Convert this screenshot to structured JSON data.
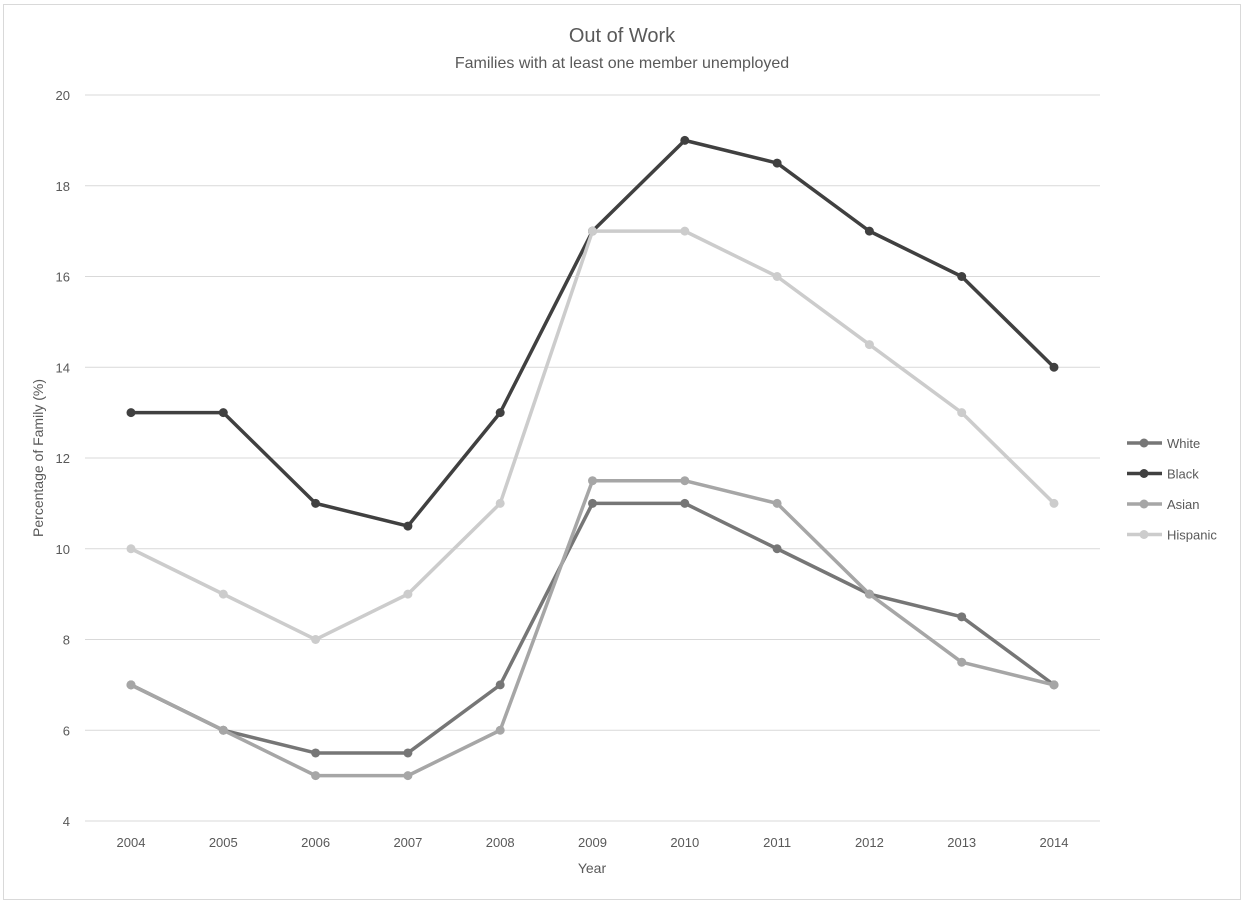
{
  "chart_data": {
    "type": "line",
    "title": "Out of Work",
    "subtitle": "Families with at least one member unemployed",
    "xlabel": "Year",
    "ylabel": "Percentage of Family (%)",
    "categories": [
      "2004",
      "2005",
      "2006",
      "2007",
      "2008",
      "2009",
      "2010",
      "2011",
      "2012",
      "2013",
      "2014"
    ],
    "yticks": [
      "4",
      "6",
      "8",
      "10",
      "12",
      "14",
      "16",
      "18",
      "20"
    ],
    "ylim": [
      4,
      20
    ],
    "grid": true,
    "legend_position": "right",
    "series": [
      {
        "name": "White",
        "color": "#767676",
        "values": [
          7,
          6,
          5.5,
          5.5,
          7,
          11,
          11,
          10,
          9,
          8.5,
          7
        ]
      },
      {
        "name": "Black",
        "color": "#404040",
        "values": [
          13,
          13,
          11,
          10.5,
          13,
          17,
          19,
          18.5,
          17,
          16,
          14
        ]
      },
      {
        "name": "Asian",
        "color": "#a6a6a6",
        "values": [
          7,
          6,
          5,
          5,
          6,
          11.5,
          11.5,
          11,
          9,
          7.5,
          7
        ]
      },
      {
        "name": "Hispanic",
        "color": "#cccccc",
        "values": [
          10,
          9,
          8,
          9,
          11,
          17,
          17,
          16,
          14.5,
          13,
          11
        ]
      }
    ]
  }
}
